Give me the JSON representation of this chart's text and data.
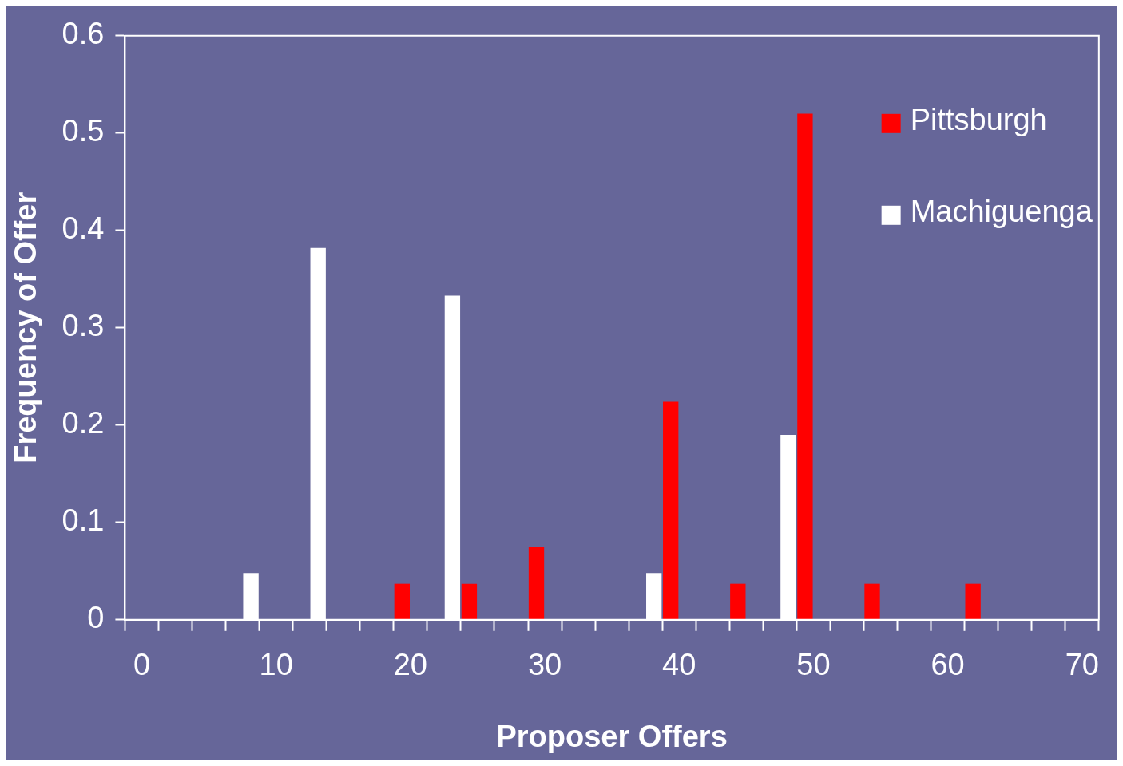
{
  "chart_data": {
    "type": "bar",
    "xlabel": "Proposer Offers",
    "ylabel": "Frequency of Offer",
    "categories": [
      "0",
      null,
      null,
      null,
      "10",
      null,
      null,
      null,
      "20",
      null,
      null,
      null,
      "30",
      null,
      null,
      null,
      "40",
      null,
      null,
      null,
      "50",
      null,
      null,
      null,
      "60",
      null,
      null,
      null,
      "70"
    ],
    "series": [
      {
        "name": "Pittsburgh",
        "color": "#ff0000",
        "values": [
          0,
          0,
          0,
          0,
          0,
          0,
          0,
          0,
          0.037,
          0,
          0.037,
          0,
          0.075,
          0,
          0,
          0,
          0.224,
          0,
          0.037,
          0,
          0.52,
          0,
          0.037,
          0,
          0,
          0.037,
          0,
          0,
          0
        ]
      },
      {
        "name": "Machiguenga",
        "color": "#ffffff",
        "values": [
          0,
          0,
          0,
          0.048,
          0,
          0.382,
          0,
          0,
          0,
          0.333,
          0,
          0,
          0,
          0,
          0,
          0.048,
          0,
          0,
          0,
          0.19,
          0,
          0,
          0,
          0,
          0,
          0,
          0,
          0,
          0
        ]
      }
    ],
    "ylim": [
      0,
      0.6
    ],
    "yticks": [
      0,
      0.1,
      0.2,
      0.3,
      0.4,
      0.5,
      0.6
    ],
    "grid": false,
    "legend": "top right"
  }
}
